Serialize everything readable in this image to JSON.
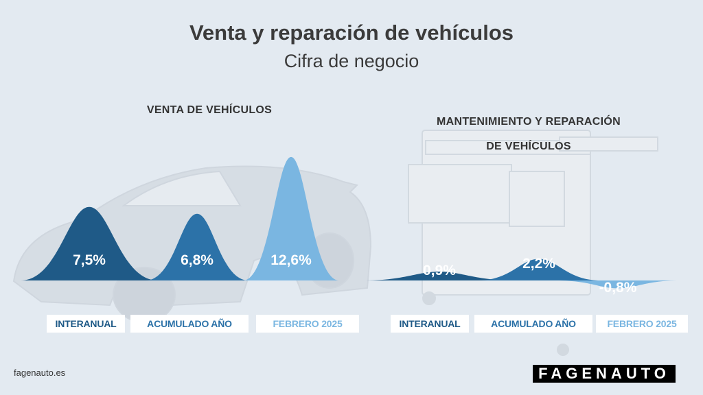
{
  "header": {
    "title": "Venta y reparación de vehículos",
    "subtitle": "Cifra de negocio"
  },
  "footer": {
    "url": "fagenauto.es",
    "logo": "FAGENAUTO"
  },
  "colors": {
    "dark": "#1f5a87",
    "medium": "#2c72a8",
    "light": "#7ab6e1",
    "background": "#e3eaf1"
  },
  "chart_data": [
    {
      "type": "bar",
      "title": "VENTA DE VEHÍCULOS",
      "categories": [
        "INTERANUAL",
        "ACUMULADO AÑO",
        "FEBRERO 2025"
      ],
      "values": [
        7.5,
        6.8,
        12.6
      ],
      "data_labels": [
        "7,5%",
        "6,8%",
        "12,6%"
      ],
      "unit": "%"
    },
    {
      "type": "bar",
      "title_line1": "MANTENIMIENTO Y REPARACIÓN",
      "title_line2": "DE VEHÍCULOS",
      "categories": [
        "INTERANUAL",
        "ACUMULADO AÑO",
        "FEBRERO 2025"
      ],
      "values": [
        0.9,
        2.2,
        -0.8
      ],
      "data_labels": [
        "0,9%",
        "2,2%",
        "-0,8%"
      ],
      "unit": "%"
    }
  ]
}
